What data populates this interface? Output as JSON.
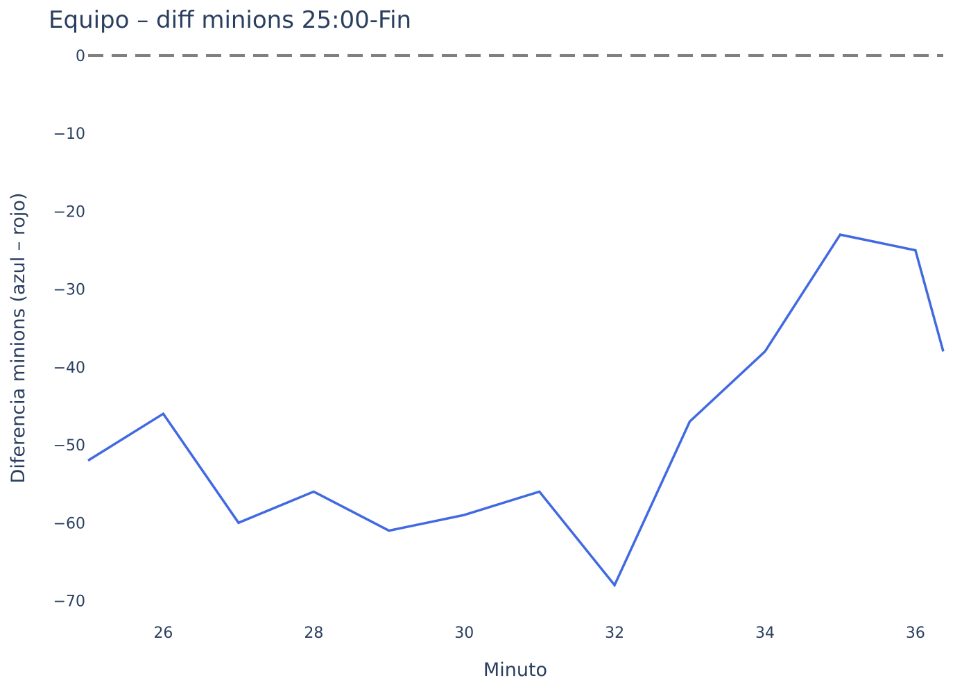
{
  "chart_data": {
    "type": "line",
    "title": "Equipo – diff minions 25:00-Fin",
    "xlabel": "Minuto",
    "ylabel": "Diferencia minions (azul – rojo)",
    "x": [
      25,
      26,
      27,
      28,
      29,
      30,
      31,
      32,
      33,
      34,
      35,
      36,
      36.37
    ],
    "series": [
      {
        "values": [
          -52,
          -46,
          -60,
          -56,
          -61,
          -59,
          -56,
          -68,
          -47,
          -38,
          -23,
          -25,
          -38
        ],
        "color": "#4169e1"
      }
    ],
    "xlim": [
      25,
      36.37
    ],
    "ylim": [
      -72,
      0
    ],
    "x_ticks": [
      26,
      28,
      30,
      32,
      34,
      36
    ],
    "y_ticks": [
      0,
      -10,
      -20,
      -30,
      -40,
      -50,
      -60,
      -70
    ],
    "y_tick_labels": [
      "0",
      "−10",
      "−20",
      "−30",
      "−40",
      "−50",
      "−60",
      "−70"
    ],
    "reference_line": {
      "y": 0,
      "style": "dashed",
      "color": "#808080"
    },
    "grid": false,
    "legend": "none"
  }
}
